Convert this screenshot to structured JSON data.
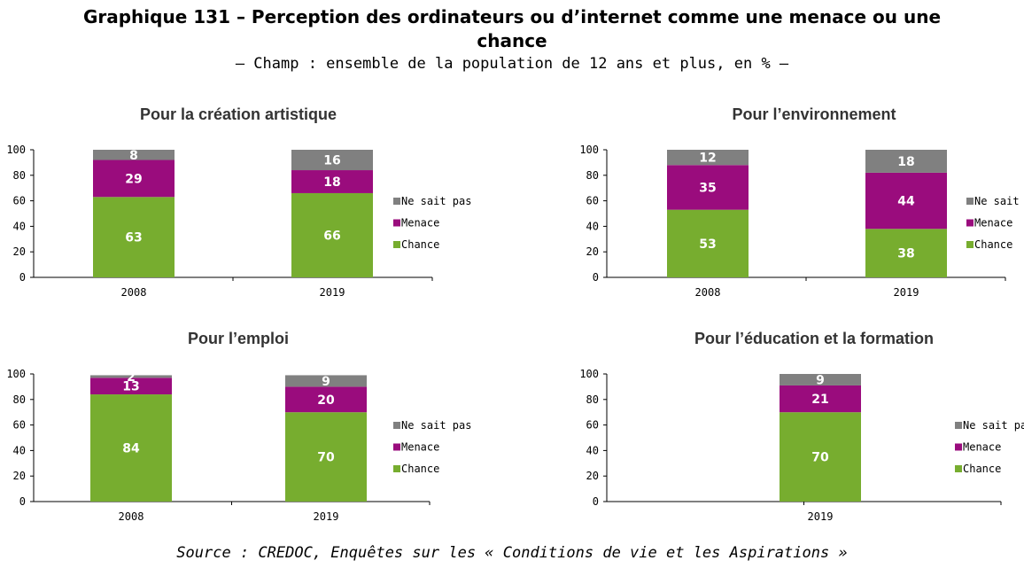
{
  "header": {
    "title_line1": "Graphique 131 – Perception des ordinateurs ou d’internet comme une menace ou une",
    "title_line2": "chance",
    "subtitle": "– Champ : ensemble de la population de 12 ans et plus, en % –"
  },
  "footer": {
    "source": "Source : CREDOC, Enquêtes sur les « Conditions de vie et les Aspirations »"
  },
  "colors": {
    "Chance": "#77AD2F",
    "Menace": "#9A0C7D",
    "Ne sait pas": "#808080"
  },
  "chart_data": [
    {
      "type": "bar",
      "stacked": true,
      "title": "Pour la création artistique",
      "categories": [
        "2008",
        "2019"
      ],
      "ylim": [
        0,
        100
      ],
      "yticks": [
        0,
        20,
        40,
        60,
        80,
        100
      ],
      "legend": [
        "Ne sait pas",
        "Menace",
        "Chance"
      ],
      "legend_position": "right",
      "series": [
        {
          "name": "Chance",
          "values": [
            63,
            66
          ]
        },
        {
          "name": "Menace",
          "values": [
            29,
            18
          ]
        },
        {
          "name": "Ne sait pas",
          "values": [
            8,
            16
          ]
        }
      ]
    },
    {
      "type": "bar",
      "stacked": true,
      "title": "Pour l’environnement",
      "categories": [
        "2008",
        "2019"
      ],
      "ylim": [
        0,
        100
      ],
      "yticks": [
        0,
        20,
        40,
        60,
        80,
        100
      ],
      "legend": [
        "Ne sait pas",
        "Menace",
        "Chance"
      ],
      "legend_position": "right",
      "series": [
        {
          "name": "Chance",
          "values": [
            53,
            38
          ]
        },
        {
          "name": "Menace",
          "values": [
            35,
            44
          ]
        },
        {
          "name": "Ne sait pas",
          "values": [
            12,
            18
          ]
        }
      ]
    },
    {
      "type": "bar",
      "stacked": true,
      "title": "Pour l’emploi",
      "categories": [
        "2008",
        "2019"
      ],
      "ylim": [
        0,
        100
      ],
      "yticks": [
        0,
        20,
        40,
        60,
        80,
        100
      ],
      "legend": [
        "Ne sait pas",
        "Menace",
        "Chance"
      ],
      "legend_position": "right",
      "series": [
        {
          "name": "Chance",
          "values": [
            84,
            70
          ]
        },
        {
          "name": "Menace",
          "values": [
            13,
            20
          ]
        },
        {
          "name": "Ne sait pas",
          "values": [
            2,
            9
          ]
        }
      ]
    },
    {
      "type": "bar",
      "stacked": true,
      "title": "Pour l’éducation et la formation",
      "categories": [
        "",
        "2019"
      ],
      "ylim": [
        0,
        100
      ],
      "yticks": [
        0,
        20,
        40,
        60,
        80,
        100
      ],
      "legend": [
        "Ne sait pas",
        "Menace",
        "Chance"
      ],
      "legend_position": "right",
      "series": [
        {
          "name": "Chance",
          "values": [
            null,
            70
          ]
        },
        {
          "name": "Menace",
          "values": [
            null,
            21
          ]
        },
        {
          "name": "Ne sait pas",
          "values": [
            null,
            9
          ]
        }
      ]
    }
  ]
}
